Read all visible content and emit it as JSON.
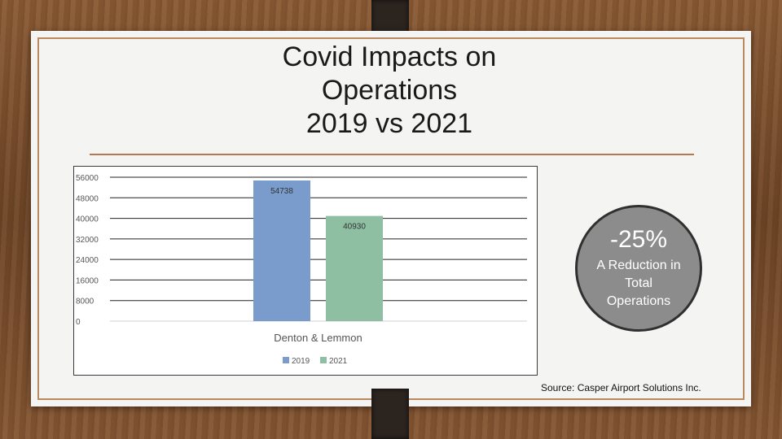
{
  "slide": {
    "title_lines": [
      "Covid Impacts on",
      "Operations",
      "2019 vs 2021"
    ],
    "callout": {
      "value": "-25%",
      "description": "A Reduction in Total Operations"
    },
    "source": "Source: Casper Airport Solutions Inc."
  },
  "chart_data": {
    "type": "bar",
    "categories": [
      "Denton & Lemmon"
    ],
    "series": [
      {
        "name": "2019",
        "values": [
          54738
        ],
        "color": "#7a9ccc"
      },
      {
        "name": "2021",
        "values": [
          40930
        ],
        "color": "#8ebfa3"
      }
    ],
    "data_labels": [
      "54738",
      "40930"
    ],
    "y_ticks": [
      "56000",
      "48000",
      "40000",
      "32000",
      "24000",
      "16000",
      "8000",
      "0"
    ],
    "ylim": [
      0,
      56000
    ],
    "grid": true,
    "legend_position": "bottom",
    "title": "",
    "xlabel": "",
    "ylabel": ""
  }
}
